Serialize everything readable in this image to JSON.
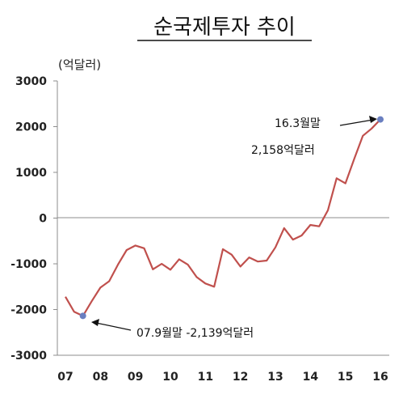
{
  "chart_data": {
    "type": "line",
    "title": "순국제투자 추이",
    "unit_label": "(억달러)",
    "xlabel": "",
    "ylabel": "",
    "ylim": [
      -3000,
      3000
    ],
    "yticks": [
      "3000",
      "2000",
      "1000",
      "0",
      "-1000",
      "-2000",
      "-3000"
    ],
    "ytick_values": [
      3000,
      2000,
      1000,
      0,
      -1000,
      -2000,
      -3000
    ],
    "xticks": [
      "07",
      "08",
      "09",
      "10",
      "11",
      "12",
      "13",
      "14",
      "15",
      "16"
    ],
    "xtick_values": [
      2007,
      2008,
      2009,
      2010,
      2011,
      2012,
      2013,
      2014,
      2015,
      2016
    ],
    "grid": false,
    "line_color": "#c0504d",
    "marker_color": "#6a7fc0",
    "series": [
      {
        "x": [
          2007.0,
          2007.25,
          2007.5,
          2007.75,
          2008.0,
          2008.25,
          2008.5,
          2008.75,
          2009.0,
          2009.25,
          2009.5,
          2009.75,
          2010.0,
          2010.25,
          2010.5,
          2010.75,
          2011.0,
          2011.25,
          2011.5,
          2011.75,
          2012.0,
          2012.25,
          2012.5,
          2012.75,
          2013.0,
          2013.25,
          2013.5,
          2013.75,
          2014.0,
          2014.25,
          2014.5,
          2014.75,
          2015.0,
          2015.25,
          2015.5,
          2015.75,
          2016.0
        ],
        "values": [
          -1720,
          -2050,
          -2139,
          -1820,
          -1520,
          -1380,
          -1020,
          -700,
          -600,
          -660,
          -1120,
          -1000,
          -1130,
          -900,
          -1020,
          -1290,
          -1430,
          -1500,
          -680,
          -800,
          -1060,
          -860,
          -950,
          -930,
          -640,
          -220,
          -470,
          -380,
          -150,
          -180,
          170,
          870,
          760,
          1290,
          1800,
          1960,
          2158
        ]
      }
    ],
    "annotations": [
      {
        "label": "16.3월말",
        "x": 2016.0,
        "y": 2158
      },
      {
        "label": "2,158억달러",
        "x": 2016.0,
        "y": 2158
      },
      {
        "label": "07.9월말  -2,139억달러",
        "x": 2007.5,
        "y": -2139
      }
    ]
  }
}
